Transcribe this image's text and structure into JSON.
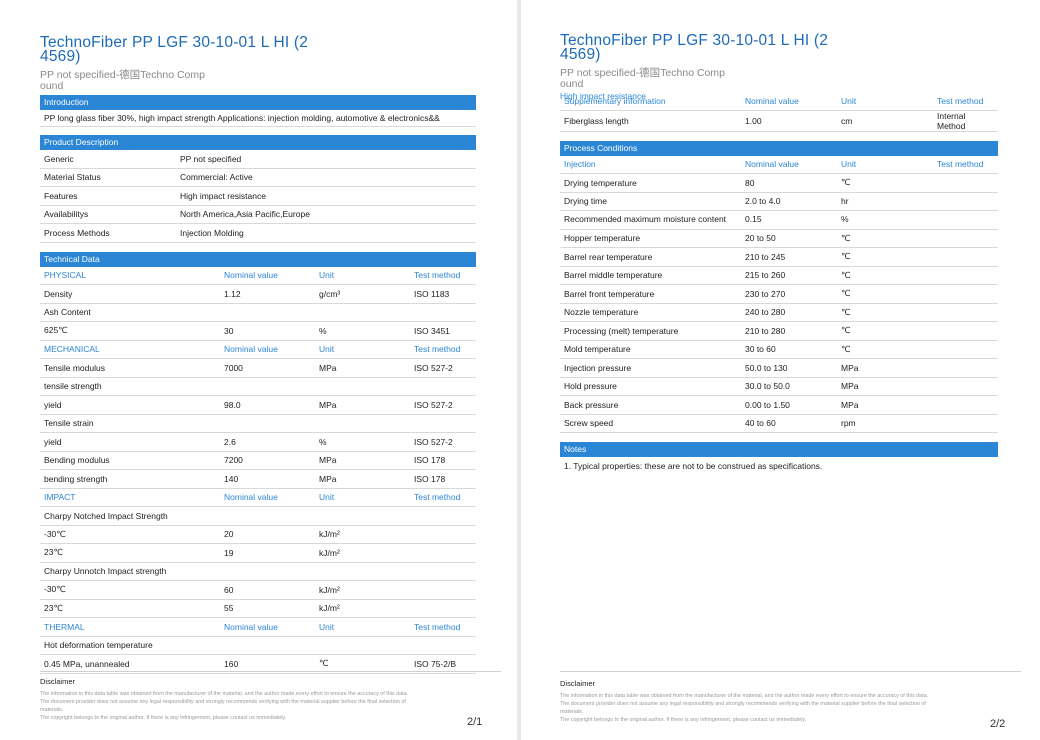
{
  "document": {
    "title_line1": "TechnoFiber PP LGF 30-10-01 L HI (2",
    "title_line2": "4569)",
    "subtitle_line1": "PP not specified-德国Techno Comp",
    "subtitle_line2": "ound"
  },
  "page1": {
    "introduction": {
      "label": "Introduction",
      "text": "PP long glass fiber 30%, high impact strength Applications: injection molding, automotive & electronics&&"
    },
    "product_description": {
      "label": "Product Description",
      "rows": [
        [
          "Generic",
          "PP not specified"
        ],
        [
          "Material Status",
          "Commercial: Active"
        ],
        [
          "Features",
          "High impact resistance"
        ],
        [
          "Availabilitys",
          "North America,Asia Pacific,Europe"
        ],
        [
          "Process Methods",
          "Injection Molding"
        ]
      ]
    },
    "technical_data": {
      "label": "Technical Data",
      "groups": [
        {
          "header": [
            "PHYSICAL",
            "Nominal value",
            "Unit",
            "Test method"
          ],
          "rows": [
            [
              "Density",
              "1.12",
              "g/cm³",
              "ISO 1183"
            ],
            [
              "Ash Content",
              "",
              "",
              ""
            ],
            [
              "625℃",
              "30",
              "%",
              "ISO 3451"
            ]
          ]
        },
        {
          "header": [
            "MECHANICAL",
            "Nominal value",
            "Unit",
            "Test method"
          ],
          "rows": [
            [
              "Tensile modulus",
              "7000",
              "MPa",
              "ISO 527-2"
            ],
            [
              "tensile strength",
              "",
              "",
              ""
            ],
            [
              "yield",
              "98.0",
              "MPa",
              "ISO 527-2"
            ],
            [
              "Tensile strain",
              "",
              "",
              ""
            ],
            [
              "yield",
              "2.6",
              "%",
              "ISO 527-2"
            ],
            [
              "Bending modulus",
              "7200",
              "MPa",
              "ISO 178"
            ],
            [
              "bending strength",
              "140",
              "MPa",
              "ISO 178"
            ]
          ]
        },
        {
          "header": [
            "IMPACT",
            "Nominal value",
            "Unit",
            "Test method"
          ],
          "rows": [
            [
              "Charpy Notched Impact Strength",
              "",
              "",
              ""
            ],
            [
              "-30℃",
              "20",
              "kJ/m²",
              ""
            ],
            [
              "23℃",
              "19",
              "kJ/m²",
              ""
            ],
            [
              "Charpy Unnotch Impact strength",
              "",
              "",
              ""
            ],
            [
              "-30℃",
              "60",
              "kJ/m²",
              ""
            ],
            [
              "23℃",
              "55",
              "kJ/m²",
              ""
            ]
          ]
        },
        {
          "header": [
            "THERMAL",
            "Nominal value",
            "Unit",
            "Test method"
          ],
          "rows": [
            [
              "Hot deformation temperature",
              "",
              "",
              ""
            ],
            [
              "0.45 MPa, unannealed",
              "160",
              "℃",
              "ISO 75-2/B"
            ]
          ]
        }
      ]
    },
    "page_number": "2/1"
  },
  "page2": {
    "supplementary": {
      "header": [
        "Supplementary information",
        "Nominal value",
        "Unit",
        "Test method"
      ],
      "overlay_text": "High impact resistance",
      "rows": [
        [
          "Fiberglass length",
          "1.00",
          "cm",
          "Internal Method"
        ]
      ]
    },
    "process_conditions": {
      "label": "Process Conditions",
      "header": [
        "Injection",
        "Nominal value",
        "Unit",
        "Test method"
      ],
      "rows": [
        [
          "Drying temperature",
          "80",
          "℃",
          ""
        ],
        [
          "Drying time",
          "2.0 to 4.0",
          "hr",
          ""
        ],
        [
          "Recommended maximum moisture content",
          "0.15",
          "%",
          ""
        ],
        [
          "Hopper temperature",
          "20 to 50",
          "℃",
          ""
        ],
        [
          "Barrel rear temperature",
          "210 to 245",
          "℃",
          ""
        ],
        [
          "Barrel middle temperature",
          "215 to 260",
          "℃",
          ""
        ],
        [
          "Barrel front temperature",
          "230 to 270",
          "℃",
          ""
        ],
        [
          "Nozzle temperature",
          "240 to 280",
          "℃",
          ""
        ],
        [
          "Processing (melt) temperature",
          "210 to 280",
          "℃",
          ""
        ],
        [
          "Mold temperature",
          "30 to 60",
          "℃",
          ""
        ],
        [
          "Injection pressure",
          "50.0 to 130",
          "MPa",
          ""
        ],
        [
          "Hold pressure",
          "30.0 to 50.0",
          "MPa",
          ""
        ],
        [
          "Back pressure",
          "0.00 to 1.50",
          "MPa",
          ""
        ],
        [
          "Screw speed",
          "40 to 60",
          "rpm",
          ""
        ]
      ]
    },
    "notes": {
      "label": "Notes",
      "text": "1. Typical properties: these are not to be construed as specifications."
    },
    "page_number": "2/2"
  },
  "disclaimer": {
    "title": "Disclaimer",
    "lines": [
      "The information in this data table was obtained from the manufacturer of the material, and the author made every effort to ensure the accuracy of this data.",
      "The document provider does not assume any legal responsibility and strongly recommends verifying with the material supplier before the final selection of",
      "materials.",
      "The copyright belongs to the original author. If there is any infringement, please contact us immediately."
    ]
  }
}
